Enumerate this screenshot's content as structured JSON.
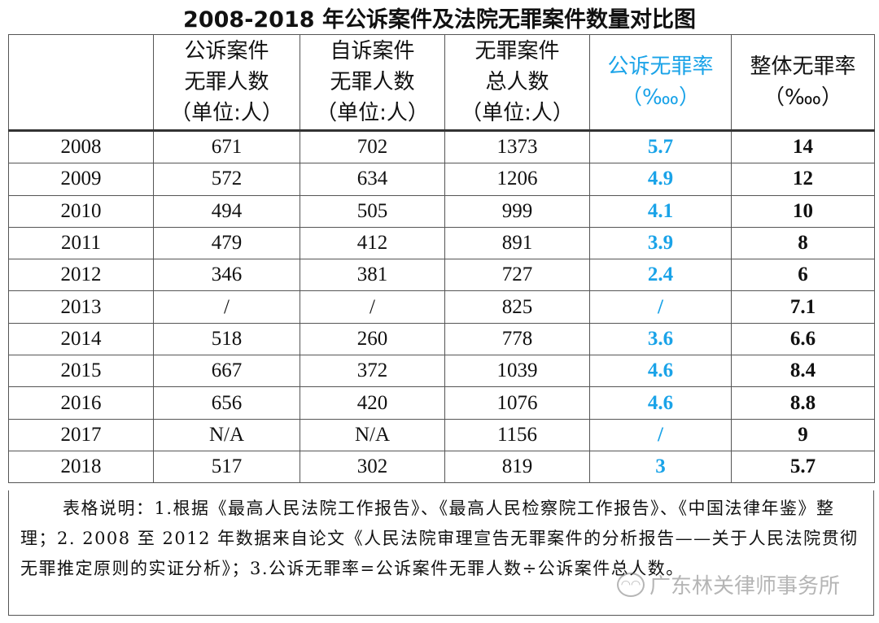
{
  "title": "2008-2018 年公诉案件及法院无罪案件数量对比图",
  "colors": {
    "accent_blue": "#1aa3e8",
    "text": "#111111"
  },
  "table": {
    "headers": [
      "",
      "公诉案件\n无罪人数\n（单位:人）",
      "自诉案件\n无罪人数\n（单位:人）",
      "无罪案件\n总人数\n（单位:人）",
      "公诉无罪率\n（‱）",
      "整体无罪率\n（‱）"
    ],
    "rows": [
      [
        "2008",
        "671",
        "702",
        "1373",
        "5.7",
        "14"
      ],
      [
        "2009",
        "572",
        "634",
        "1206",
        "4.9",
        "12"
      ],
      [
        "2010",
        "494",
        "505",
        "999",
        "4.1",
        "10"
      ],
      [
        "2011",
        "479",
        "412",
        "891",
        "3.9",
        "8"
      ],
      [
        "2012",
        "346",
        "381",
        "727",
        "2.4",
        "6"
      ],
      [
        "2013",
        "/",
        "/",
        "825",
        "/",
        "7.1"
      ],
      [
        "2014",
        "518",
        "260",
        "778",
        "3.6",
        "6.6"
      ],
      [
        "2015",
        "667",
        "372",
        "1039",
        "4.6",
        "8.4"
      ],
      [
        "2016",
        "656",
        "420",
        "1076",
        "4.6",
        "8.8"
      ],
      [
        "2017",
        "N/A",
        "N/A",
        "1156",
        "/",
        "9"
      ],
      [
        "2018",
        "517",
        "302",
        "819",
        "3",
        "5.7"
      ]
    ]
  },
  "note": "表格说明：1.根据《最高人民法院工作报告》、《最高人民检察院工作报告》、《中国法律年鉴》整理；2. 2008 至 2012 年数据来自论文《人民法院审理宣告无罪案件的分析报告——关于人民法院贯彻无罪推定原则的实证分析》；3.公诉无罪率=公诉案件无罪人数÷公诉案件总人数。",
  "watermark": {
    "text": "广东林关律师事务所",
    "icon": "wechat-icon"
  }
}
